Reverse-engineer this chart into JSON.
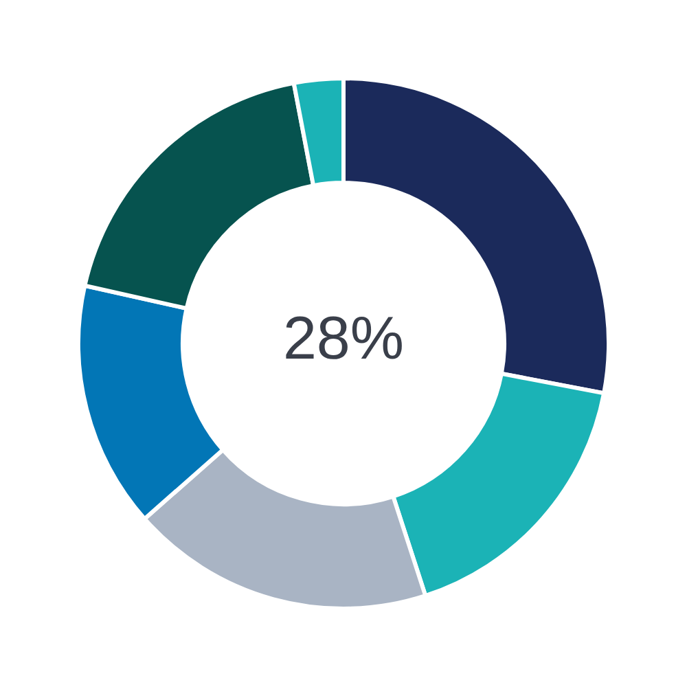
{
  "chart_data": {
    "type": "donut",
    "categories": [
      null,
      null,
      null,
      null,
      null,
      null
    ],
    "values": [
      28,
      17,
      18.5,
      15,
      18.5,
      3
    ],
    "colors": [
      "#1b2a5b",
      "#1bb3b6",
      "#a9b4c4",
      "#0276b6",
      "#06534f",
      "#1bb3b6"
    ],
    "annotations": [
      "28%"
    ]
  }
}
